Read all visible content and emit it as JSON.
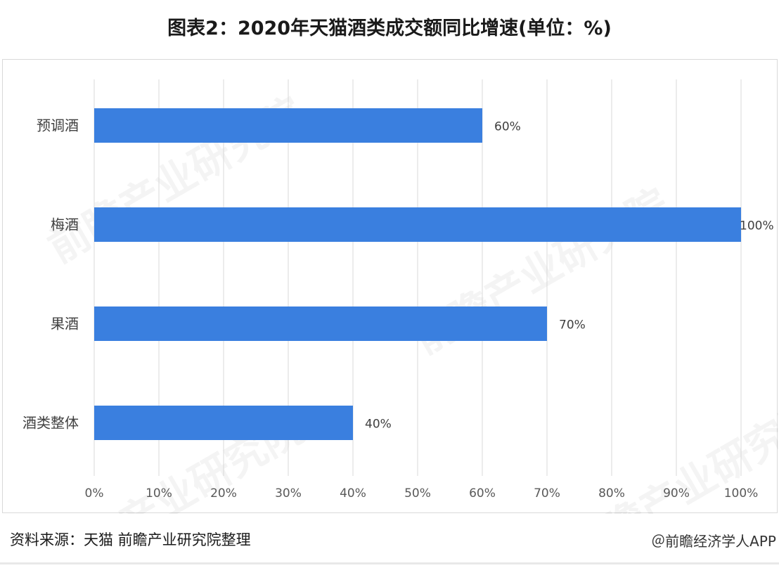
{
  "title": "图表2：2020年天猫酒类成交额同比增速(单位：%)",
  "source": "资料来源：天猫 前瞻产业研究院整理",
  "credit": "＠前瞻经济学人APP",
  "watermark": "前瞻产业研究院",
  "colors": {
    "bar": "#3a7fdf",
    "grid": "#d9d9d9",
    "axis_text": "#595959"
  },
  "chart_data": {
    "type": "bar",
    "orientation": "horizontal",
    "categories": [
      "预调酒",
      "梅酒",
      "果酒",
      "酒类整体"
    ],
    "values": [
      60,
      100,
      70,
      40
    ],
    "data_labels": [
      "60%",
      "100%",
      "70%",
      "40%"
    ],
    "x_ticks": [
      "0%",
      "10%",
      "20%",
      "30%",
      "40%",
      "50%",
      "60%",
      "70%",
      "80%",
      "90%",
      "100%"
    ],
    "xlim": [
      0,
      100
    ],
    "grid": true,
    "legend": "none"
  }
}
